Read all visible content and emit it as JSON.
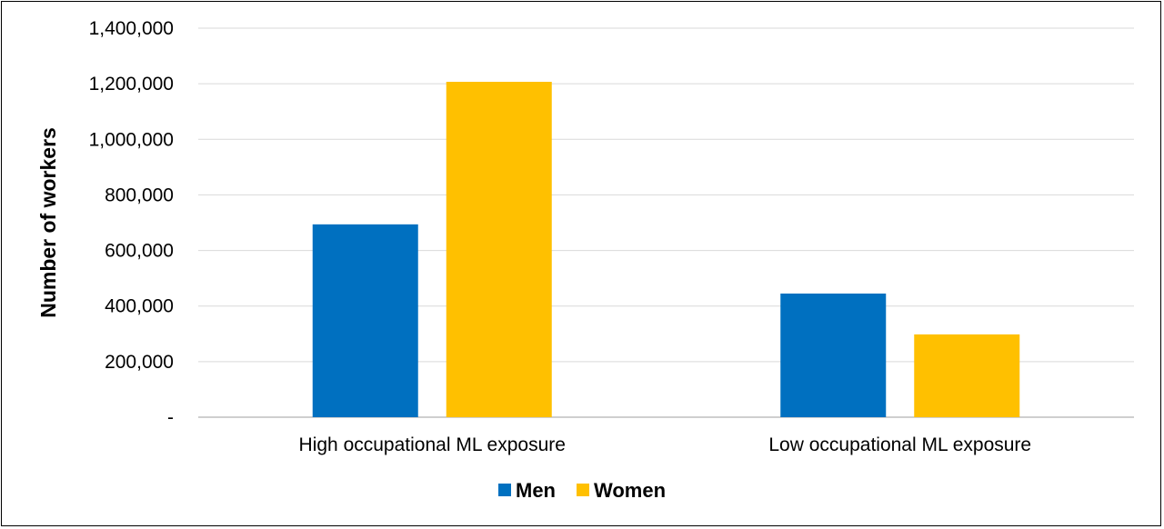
{
  "chart_data": {
    "type": "bar",
    "categories": [
      "High occupational ML exposure",
      "Low occupational ML exposure"
    ],
    "series": [
      {
        "name": "Men",
        "values": [
          694000,
          445000
        ],
        "color": "#0070C0"
      },
      {
        "name": "Women",
        "values": [
          1207000,
          298000
        ],
        "color": "#FFC000"
      }
    ],
    "ylabel": "Number of workers",
    "xlabel": "",
    "ylim": [
      0,
      1400000
    ],
    "yticks": [
      0,
      200000,
      400000,
      600000,
      800000,
      1000000,
      1200000,
      1400000
    ],
    "ytick_labels": [
      "-",
      "200,000",
      "400,000",
      "600,000",
      "800,000",
      "1,000,000",
      "1,200,000",
      "1,400,000"
    ],
    "grid": true,
    "legend_position": "bottom",
    "gridline_color": "#D9D9D9",
    "axis_color": "#BFBFBF"
  }
}
